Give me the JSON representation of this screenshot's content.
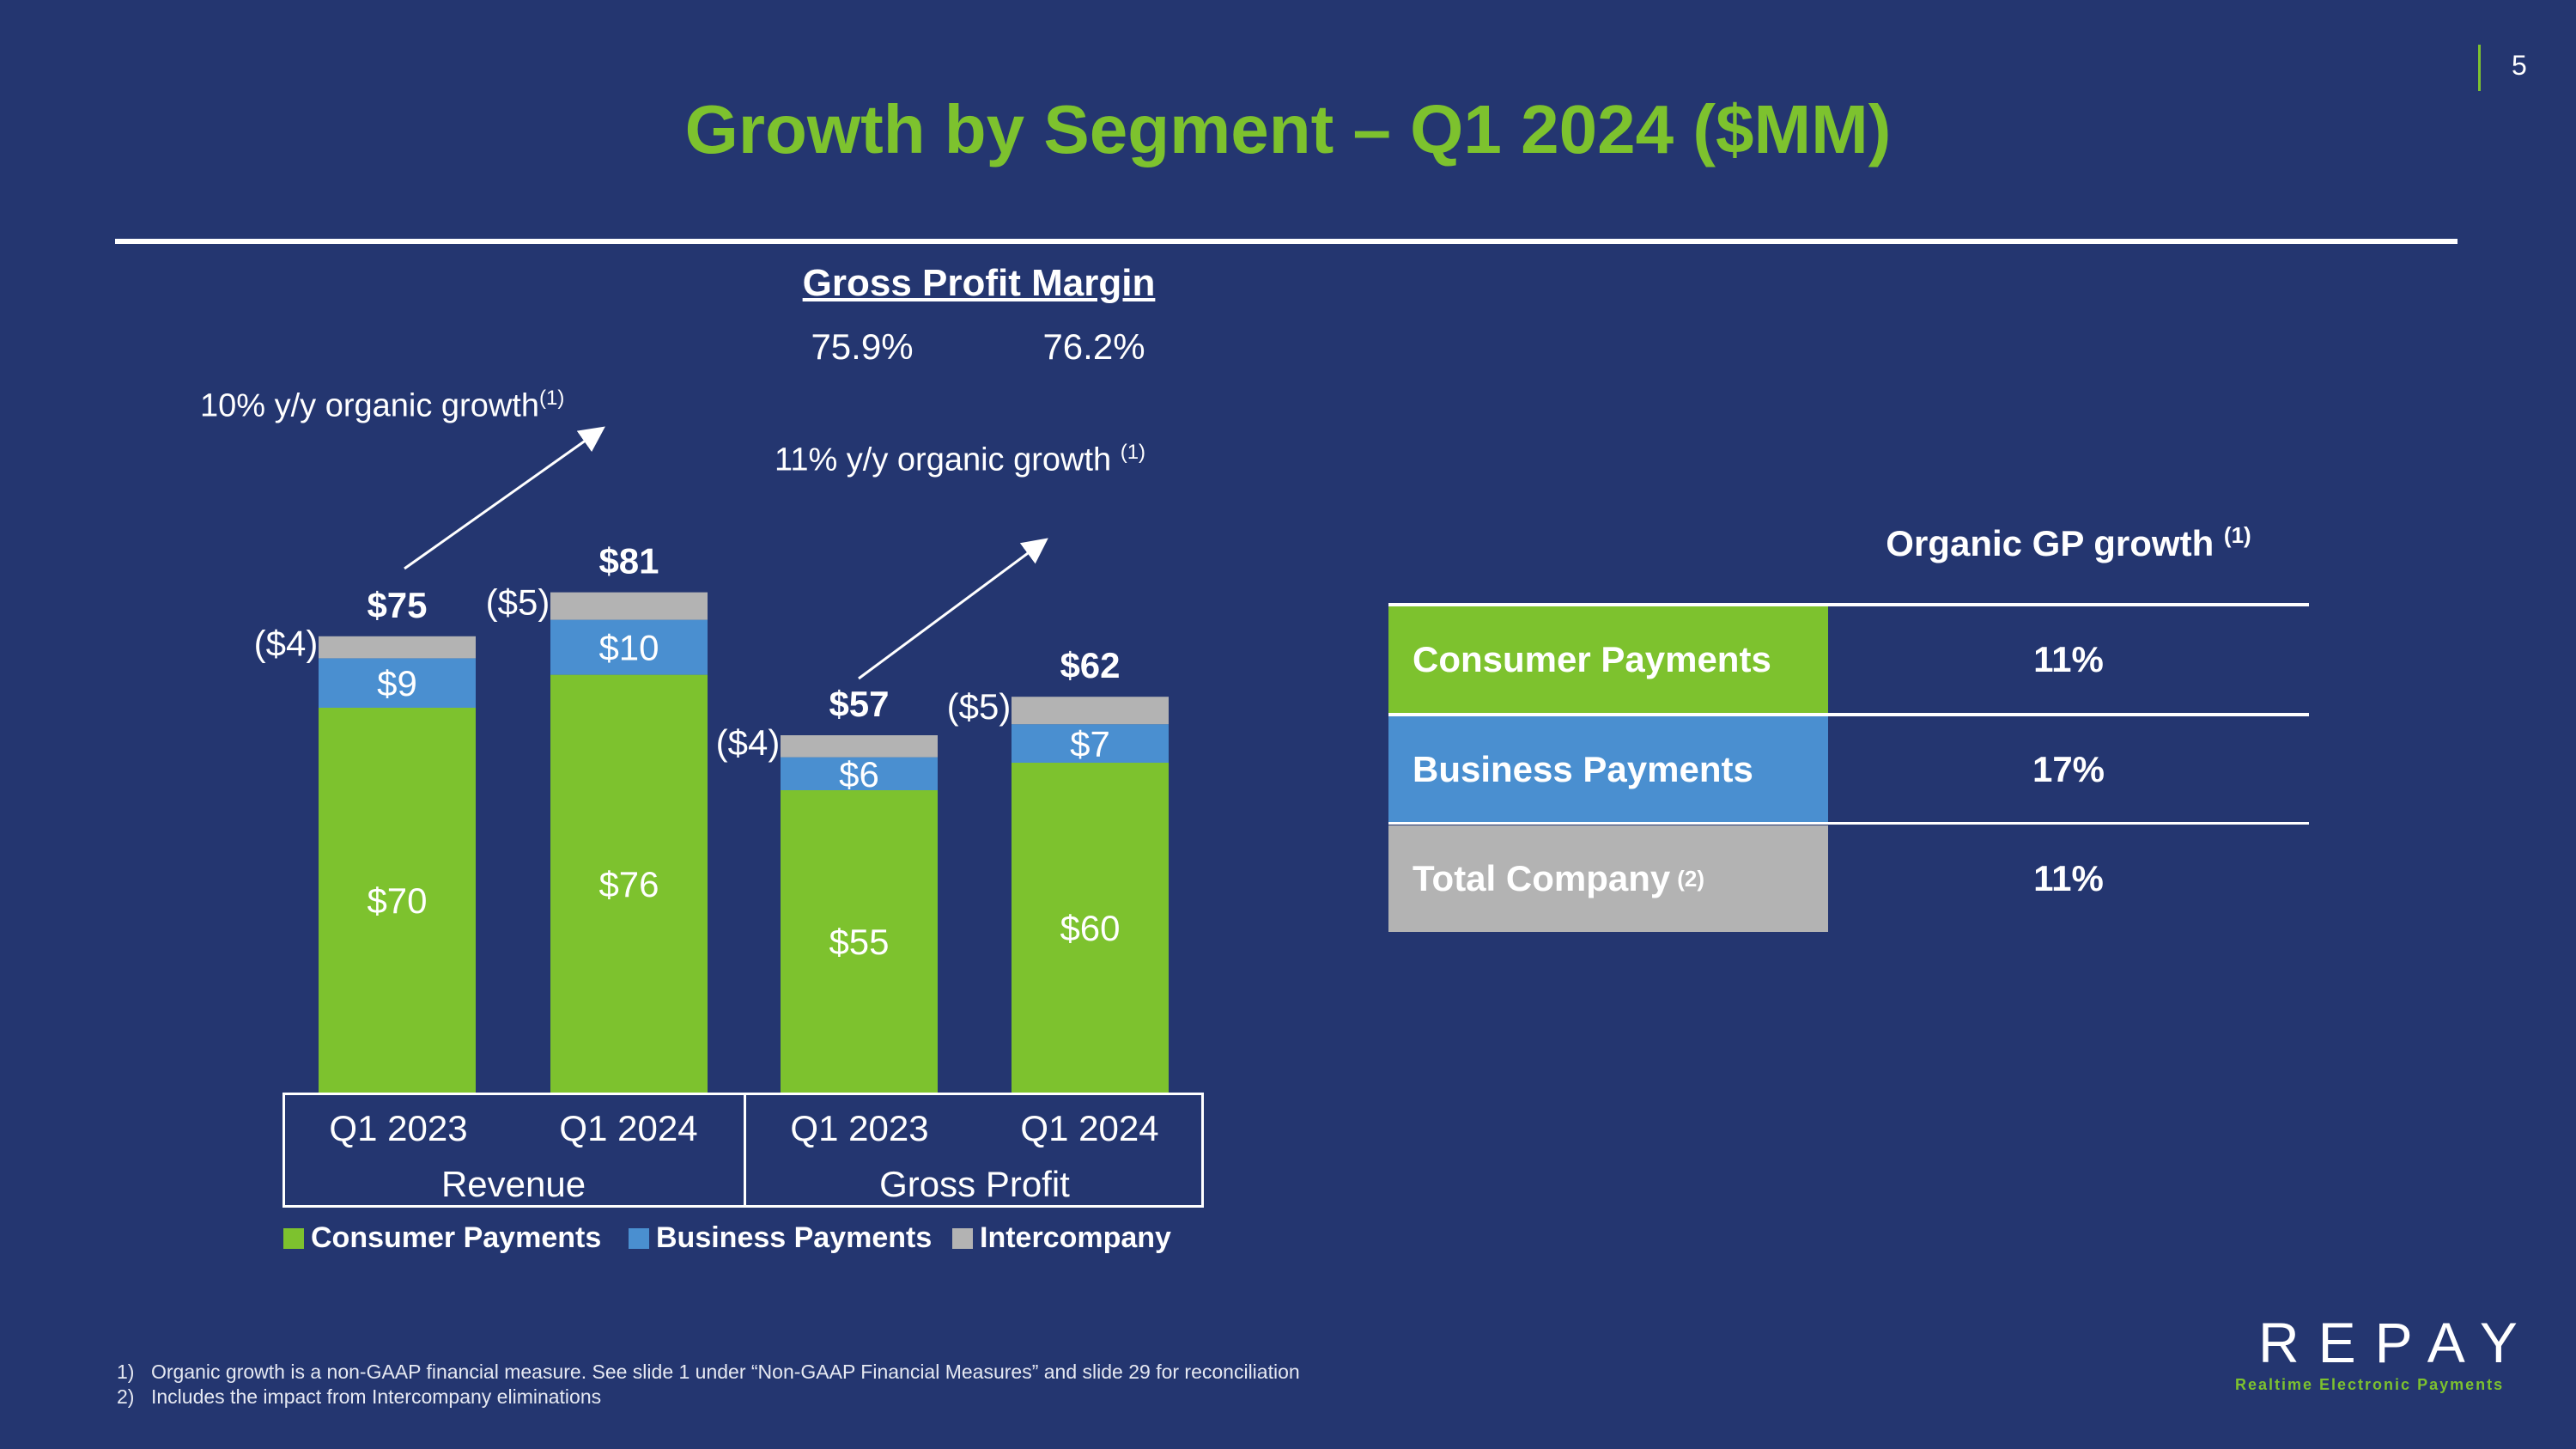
{
  "page_number": "5",
  "title": "Growth by Segment – Q1 2024 ($MM)",
  "gross_profit_margin": {
    "label": "Gross Profit Margin",
    "values": [
      "75.9%",
      "76.2%"
    ]
  },
  "annotations": {
    "revenue_growth": "10% y/y organic growth",
    "revenue_growth_note": "(1)",
    "gp_growth": "11% y/y organic growth",
    "gp_growth_note": "(1)"
  },
  "chart_data": {
    "type": "bar",
    "stacked": true,
    "groups": [
      "Revenue",
      "Gross Profit"
    ],
    "categories": [
      "Q1 2023",
      "Q1 2024",
      "Q1 2023",
      "Q1 2024"
    ],
    "series": [
      {
        "name": "Consumer Payments",
        "color": "#7dc22e",
        "values": [
          70,
          76,
          55,
          60
        ],
        "labels": [
          "$70",
          "$76",
          "$55",
          "$60"
        ]
      },
      {
        "name": "Business Payments",
        "color": "#4a8fd0",
        "values": [
          9,
          10,
          6,
          7
        ],
        "labels": [
          "$9",
          "$10",
          "$6",
          "$7"
        ]
      },
      {
        "name": "Intercompany",
        "color": "#b3b3b3",
        "values": [
          -4,
          -5,
          -4,
          -5
        ],
        "labels": [
          "($4)",
          "($5)",
          "($4)",
          "($5)"
        ]
      }
    ],
    "totals": [
      "$75",
      "$81",
      "$57",
      "$62"
    ],
    "legend": "bottom"
  },
  "table": {
    "header": "Organic GP growth",
    "header_note": "(1)",
    "rows": [
      {
        "label": "Consumer Payments",
        "value": "11%",
        "color": "#7dc22e"
      },
      {
        "label": "Business Payments",
        "value": "17%",
        "color": "#4a8fd0"
      },
      {
        "label": "Total Company",
        "note": "(2)",
        "value": "11%",
        "color": "#b3b3b3"
      }
    ]
  },
  "footnotes": [
    {
      "num": "1)",
      "text": "Organic growth is a non-GAAP financial measure. See slide 1 under “Non-GAAP Financial Measures” and slide 29 for reconciliation"
    },
    {
      "num": "2)",
      "text": "Includes the impact from Intercompany eliminations"
    }
  ],
  "logo": {
    "name": "REPAY",
    "tagline": "Realtime Electronic Payments"
  }
}
